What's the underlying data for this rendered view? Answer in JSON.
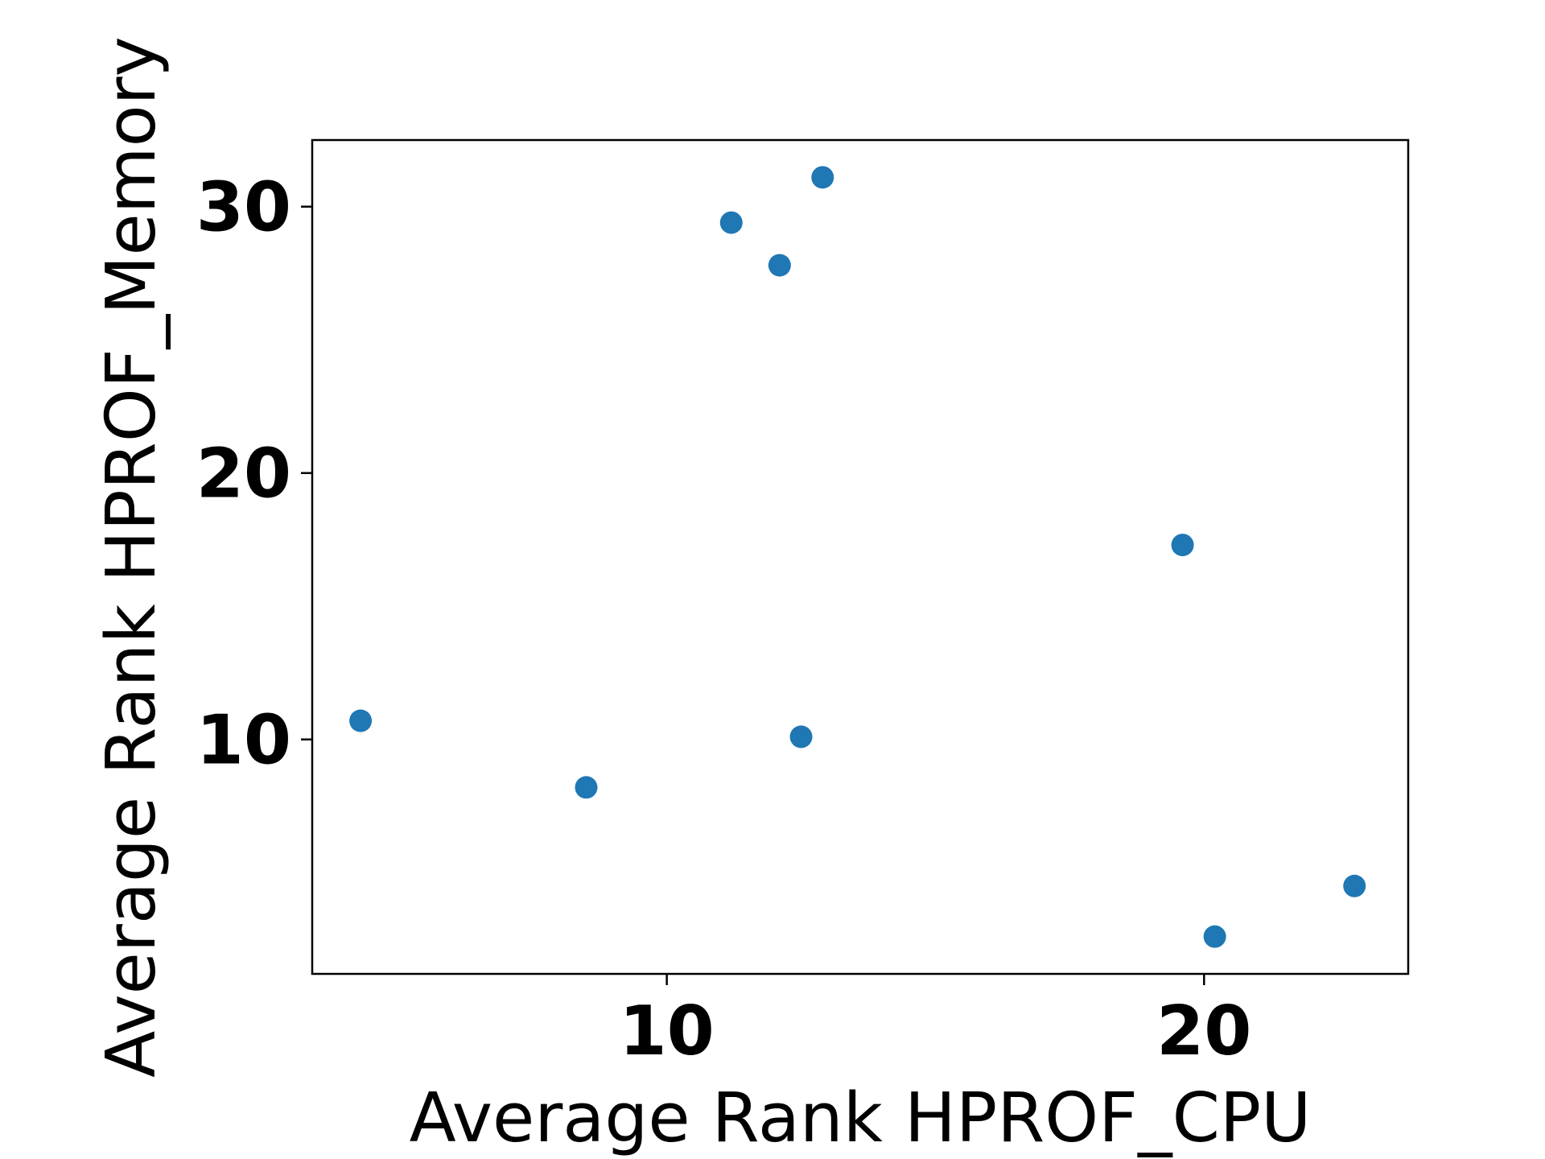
{
  "chart_data": {
    "type": "scatter",
    "title": "",
    "xlabel": "Average Rank HPROF_CPU",
    "ylabel": "Average Rank HPROF_Memory",
    "xlim": [
      3.4,
      23.8
    ],
    "ylim": [
      1.2,
      32.5
    ],
    "xticks": [
      10,
      20
    ],
    "xtick_labels": [
      "10",
      "20"
    ],
    "yticks": [
      10,
      20,
      30
    ],
    "ytick_labels": [
      "10",
      "20",
      "30"
    ],
    "grid": false,
    "legend": false,
    "point_color": "#1f77b4",
    "series": [
      {
        "x": [
          4.3,
          8.5,
          11.2,
          12.1,
          12.5,
          12.9,
          19.6,
          20.2,
          22.8
        ],
        "y": [
          10.7,
          8.2,
          29.4,
          27.8,
          10.1,
          31.1,
          17.3,
          2.6,
          4.5
        ]
      }
    ]
  }
}
